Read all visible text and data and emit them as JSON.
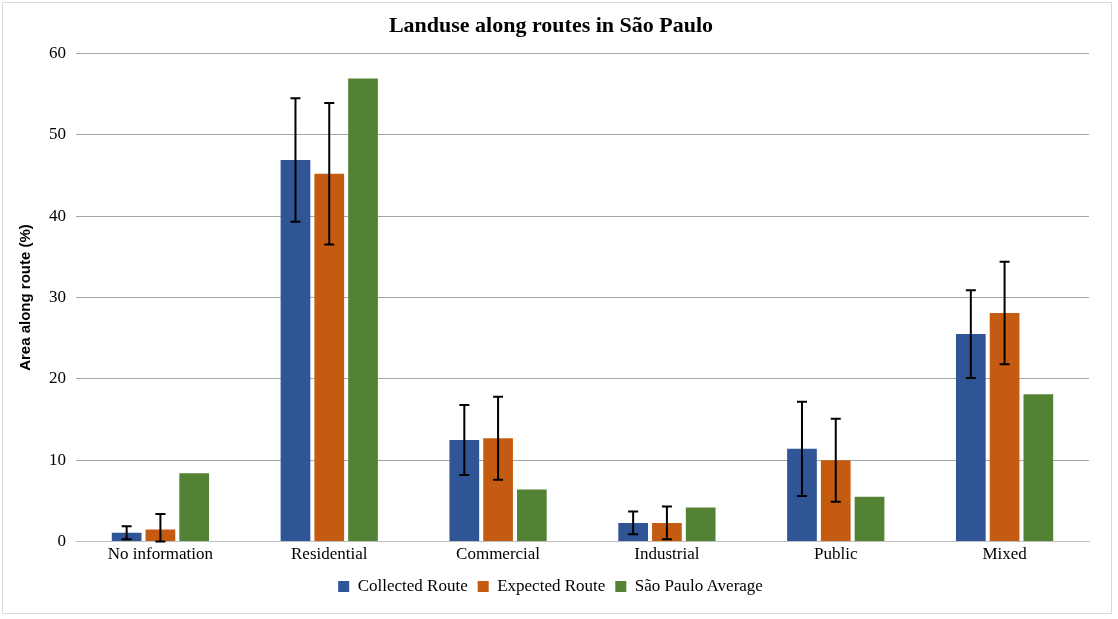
{
  "chart_data": {
    "type": "bar",
    "title": "Landuse along routes in São Paulo",
    "ylabel": "Area along route (%)",
    "categories": [
      "No information",
      "Residential",
      "Commercial",
      "Industrial",
      "Public",
      "Mixed"
    ],
    "series": [
      {
        "name": "Collected Route",
        "color": "#2f5597",
        "values": [
          1.1,
          46.9,
          12.5,
          2.3,
          11.4,
          25.5
        ],
        "errors": [
          0.8,
          7.6,
          4.3,
          1.4,
          5.8,
          5.4
        ]
      },
      {
        "name": "Expected Route",
        "color": "#c55a11",
        "values": [
          1.5,
          45.2,
          12.7,
          2.3,
          10.0,
          28.1
        ],
        "errors": [
          [
            0,
            3.4
          ],
          8.7,
          5.1,
          2.0,
          5.1,
          6.3
        ]
      },
      {
        "name": "São Paulo Average",
        "color": "#548235",
        "values": [
          8.4,
          56.9,
          6.4,
          4.2,
          5.5,
          18.1
        ]
      }
    ],
    "ylim": [
      0,
      60
    ],
    "yticks": [
      0,
      10,
      20,
      30,
      40,
      50,
      60
    ],
    "grid": "y",
    "legend": "bottom"
  }
}
